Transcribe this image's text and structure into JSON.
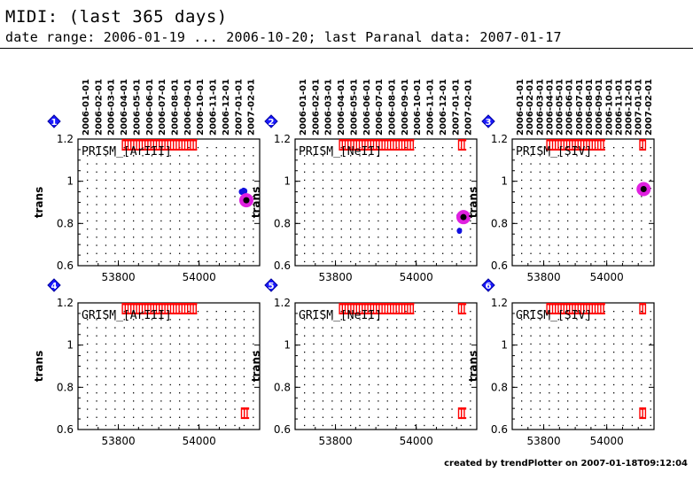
{
  "header": {
    "title": "MIDI: (last 365 days)",
    "subtitle": "date range: 2006-01-19 ... 2006-10-20; last Paranal data: 2007-01-17"
  },
  "footer": {
    "credit": "created by trendPlotter on 2007-01-18T09:12:04"
  },
  "colors": {
    "data": "#1010e0",
    "last_point": "#e020e0",
    "marker": "#ff0000",
    "badge": "#1a1aff"
  },
  "chart_data": [
    {
      "type": "scatter",
      "badge": "1",
      "label": "PRISM_[ArIII]",
      "ylabel": "trans",
      "xlim": [
        53700,
        54150
      ],
      "ylim": [
        0.6,
        1.2
      ],
      "xticks": [
        53800,
        54000
      ],
      "yticks": [
        0.6,
        0.8,
        1,
        1.2
      ],
      "top_date_ticks": [
        "2006-01-01",
        "2006-02-01",
        "2006-03-01",
        "2006-04-01",
        "2006-05-01",
        "2006-06-01",
        "2006-07-01",
        "2006-08-01",
        "2006-09-01",
        "2006-10-01",
        "2006-11-01",
        "2006-12-01",
        "2007-01-01",
        "2007-02-01"
      ],
      "points": [
        {
          "x": 54105,
          "y": 0.95
        },
        {
          "x": 54110,
          "y": 0.955
        },
        {
          "x": 54113,
          "y": 0.953
        }
      ],
      "last_point": {
        "x": 54117,
        "y": 0.91
      },
      "marker_groups": [
        {
          "from": 53810,
          "to": 53995,
          "y": 1.2
        }
      ]
    },
    {
      "type": "scatter",
      "badge": "2",
      "label": "PRISM_[NeII]",
      "ylabel": "trans",
      "xlim": [
        53700,
        54150
      ],
      "ylim": [
        0.6,
        1.2
      ],
      "xticks": [
        53800,
        54000
      ],
      "yticks": [
        0.6,
        0.8,
        1,
        1.2
      ],
      "top_date_ticks": [
        "2006-01-01",
        "2006-02-01",
        "2006-03-01",
        "2006-04-01",
        "2006-05-01",
        "2006-06-01",
        "2006-07-01",
        "2006-08-01",
        "2006-09-01",
        "2006-10-01",
        "2006-11-01",
        "2006-12-01",
        "2007-01-01",
        "2007-02-01"
      ],
      "points": [
        {
          "x": 54106,
          "y": 0.835
        },
        {
          "x": 54109,
          "y": 0.832
        },
        {
          "x": 54107,
          "y": 0.765
        }
      ],
      "last_point": {
        "x": 54117,
        "y": 0.83
      },
      "marker_groups": [
        {
          "from": 53810,
          "to": 53995,
          "y": 1.2
        },
        {
          "from": 54105,
          "to": 54124,
          "y": 1.2
        }
      ]
    },
    {
      "type": "scatter",
      "badge": "3",
      "label": "PRISM_[SIV]",
      "ylabel": "trans",
      "xlim": [
        53700,
        54150
      ],
      "ylim": [
        0.6,
        1.2
      ],
      "xticks": [
        53800,
        54000
      ],
      "yticks": [
        0.6,
        0.8,
        1,
        1.2
      ],
      "top_date_ticks": [
        "2006-01-01",
        "2006-02-01",
        "2006-03-01",
        "2006-04-01",
        "2006-05-01",
        "2006-06-01",
        "2006-07-01",
        "2006-08-01",
        "2006-09-01",
        "2006-10-01",
        "2006-11-01",
        "2006-12-01",
        "2007-01-01",
        "2007-02-01"
      ],
      "points": [
        {
          "x": 54108,
          "y": 0.962
        }
      ],
      "last_point": {
        "x": 54117,
        "y": 0.963
      },
      "marker_groups": [
        {
          "from": 53810,
          "to": 53995,
          "y": 1.2
        },
        {
          "from": 54105,
          "to": 54124,
          "y": 1.2
        }
      ]
    },
    {
      "type": "scatter",
      "badge": "4",
      "label": "GRISM_[ArIII]",
      "ylabel": "trans",
      "xlim": [
        53700,
        54150
      ],
      "ylim": [
        0.6,
        1.2
      ],
      "xticks": [
        53800,
        54000
      ],
      "yticks": [
        0.6,
        0.8,
        1,
        1.2
      ],
      "points": [],
      "last_point": null,
      "marker_groups": [
        {
          "from": 53810,
          "to": 53995,
          "y": 1.2
        },
        {
          "from": 54105,
          "to": 54124,
          "y": 0.65
        }
      ]
    },
    {
      "type": "scatter",
      "badge": "5",
      "label": "GRISM_[NeII]",
      "ylabel": "trans",
      "xlim": [
        53700,
        54150
      ],
      "ylim": [
        0.6,
        1.2
      ],
      "xticks": [
        53800,
        54000
      ],
      "yticks": [
        0.6,
        0.8,
        1,
        1.2
      ],
      "points": [],
      "last_point": null,
      "marker_groups": [
        {
          "from": 53810,
          "to": 53995,
          "y": 1.2
        },
        {
          "from": 54105,
          "to": 54124,
          "y": 0.65
        },
        {
          "from": 54105,
          "to": 54124,
          "y": 1.2
        }
      ]
    },
    {
      "type": "scatter",
      "badge": "6",
      "label": "GRISM_[SIV]",
      "ylabel": "trans",
      "xlim": [
        53700,
        54150
      ],
      "ylim": [
        0.6,
        1.2
      ],
      "xticks": [
        53800,
        54000
      ],
      "yticks": [
        0.6,
        0.8,
        1,
        1.2
      ],
      "points": [],
      "last_point": null,
      "marker_groups": [
        {
          "from": 53810,
          "to": 53995,
          "y": 1.2
        },
        {
          "from": 54105,
          "to": 54124,
          "y": 0.65
        },
        {
          "from": 54105,
          "to": 54124,
          "y": 1.2
        }
      ]
    }
  ]
}
